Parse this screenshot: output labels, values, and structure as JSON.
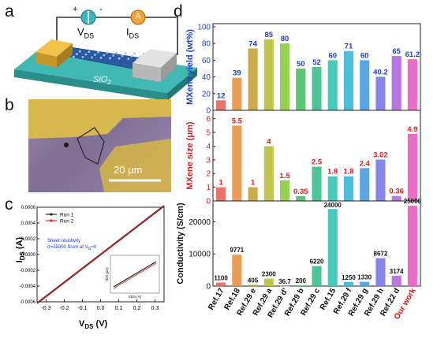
{
  "panels": {
    "a": {
      "letter": "a",
      "vds_label": "V",
      "vds_sub": "DS",
      "ids_label": "I",
      "ids_sub": "DS",
      "plus": "+",
      "minus": "-",
      "meter_a": "A",
      "substrate": "SiO",
      "substrate_sub": "2"
    },
    "b": {
      "letter": "b",
      "scalebar": "20 μm"
    },
    "c": {
      "letter": "c",
      "ylabel": "I",
      "ylabel_sub": "DS",
      "ylabel_unit": " (A)",
      "xlabel": "V",
      "xlabel_sub": "DS",
      "xlabel_unit": " (V)",
      "legend": [
        "Run 1",
        "Run 2"
      ],
      "note1": "Sheet resistivity",
      "note2": "σ=25000 S/cm  at V",
      "note2_sub": "G",
      "note2_end": "=0",
      "inset_ylabel": "IDS (μA)",
      "inset_xlabel": "VDS (V)"
    },
    "d": {
      "letter": "d"
    }
  },
  "chart_data": [
    {
      "type": "line",
      "panel": "c",
      "xlabel": "VDS (V)",
      "ylabel": "IDS (A)",
      "xlim": [
        -0.35,
        0.35
      ],
      "ylim": [
        -0.0006,
        0.0006
      ],
      "xticks": [
        "-0.3",
        "-0.2",
        "-0.1",
        "0.0",
        "0.1",
        "0.2",
        "0.3"
      ],
      "yticks": [
        "0.0006",
        "0.0004",
        "0.0002",
        "0.0000",
        "-0.0002",
        "-0.0004",
        "-0.0006"
      ],
      "series": [
        {
          "name": "Run 1",
          "color": "#222222",
          "x": [
            -0.35,
            0.35
          ],
          "y": [
            -0.00062,
            0.00062
          ]
        },
        {
          "name": "Run 2",
          "color": "#e02020",
          "x": [
            -0.35,
            0.35
          ],
          "y": [
            -0.00062,
            0.00062
          ]
        }
      ],
      "legend": "top-left"
    },
    {
      "type": "bar",
      "panel": "d",
      "categories": [
        "Ref.17",
        "Ref.18",
        "Ref.29 e",
        "Ref.29 a",
        "Ref.29 d'",
        "Ref.29 b",
        "Ref.29 c",
        "Ref.15",
        "Ref.29 f",
        "Ref.29 g",
        "Ref.29 h",
        "Ref.22 d",
        "Our work"
      ],
      "highlight_category": "Our work",
      "highlight_color": "#dd1111",
      "colors": [
        "#e8675d",
        "#e99447",
        "#c9a43d",
        "#b8c13f",
        "#8fcc45",
        "#4fc06a",
        "#3fc08f",
        "#37c6b6",
        "#3cb8d8",
        "#4c9ee3",
        "#7b7ce6",
        "#b56ae3",
        "#ec5fc0"
      ],
      "subplots": [
        {
          "ylabel": "MXene yield (wt%)",
          "label_color": "#1d3fcf",
          "ylim": [
            0,
            100
          ],
          "yticks": [
            "0",
            "20",
            "40",
            "60",
            "80",
            "100"
          ],
          "values": [
            12,
            39,
            74,
            85,
            80,
            50,
            52,
            60,
            71,
            60,
            40.2,
            65,
            61.2
          ],
          "labels": [
            "12",
            "39",
            "74",
            "85",
            "80",
            "50",
            "52",
            "60",
            "71",
            "60",
            "40.2",
            "65",
            "61.2"
          ]
        },
        {
          "ylabel": "MXene size (μm)",
          "label_color": "#d11f1f",
          "ylim": [
            0,
            6.5
          ],
          "yticks": [
            "0",
            "1",
            "2",
            "3",
            "4",
            "5",
            "6"
          ],
          "values": [
            1,
            5.5,
            1,
            4,
            1.5,
            0.35,
            2.5,
            1.8,
            1.8,
            2.4,
            3.02,
            0.36,
            4.9
          ],
          "labels": [
            "1",
            "5.5",
            "1",
            "4",
            "1.5",
            "0.35",
            "2.5",
            "1.8",
            "1.8",
            "2.4",
            "3.02",
            "0.36",
            "4.9"
          ]
        },
        {
          "ylabel": "Conductivity (S/cm)",
          "label_color": "#111111",
          "ylim": [
            0,
            26000
          ],
          "yticks": [
            "0",
            "10000",
            "20000"
          ],
          "values": [
            1100,
            9771,
            405,
            2300,
            36.7,
            200,
            6220,
            24000,
            1250,
            1330,
            8672,
            3174,
            25000
          ],
          "labels": [
            "1100",
            "9771",
            "405",
            "2300",
            "36.7",
            "200",
            "6220",
            "24000",
            "1250",
            "1330",
            "8672",
            "3174",
            "25000"
          ]
        }
      ]
    }
  ]
}
